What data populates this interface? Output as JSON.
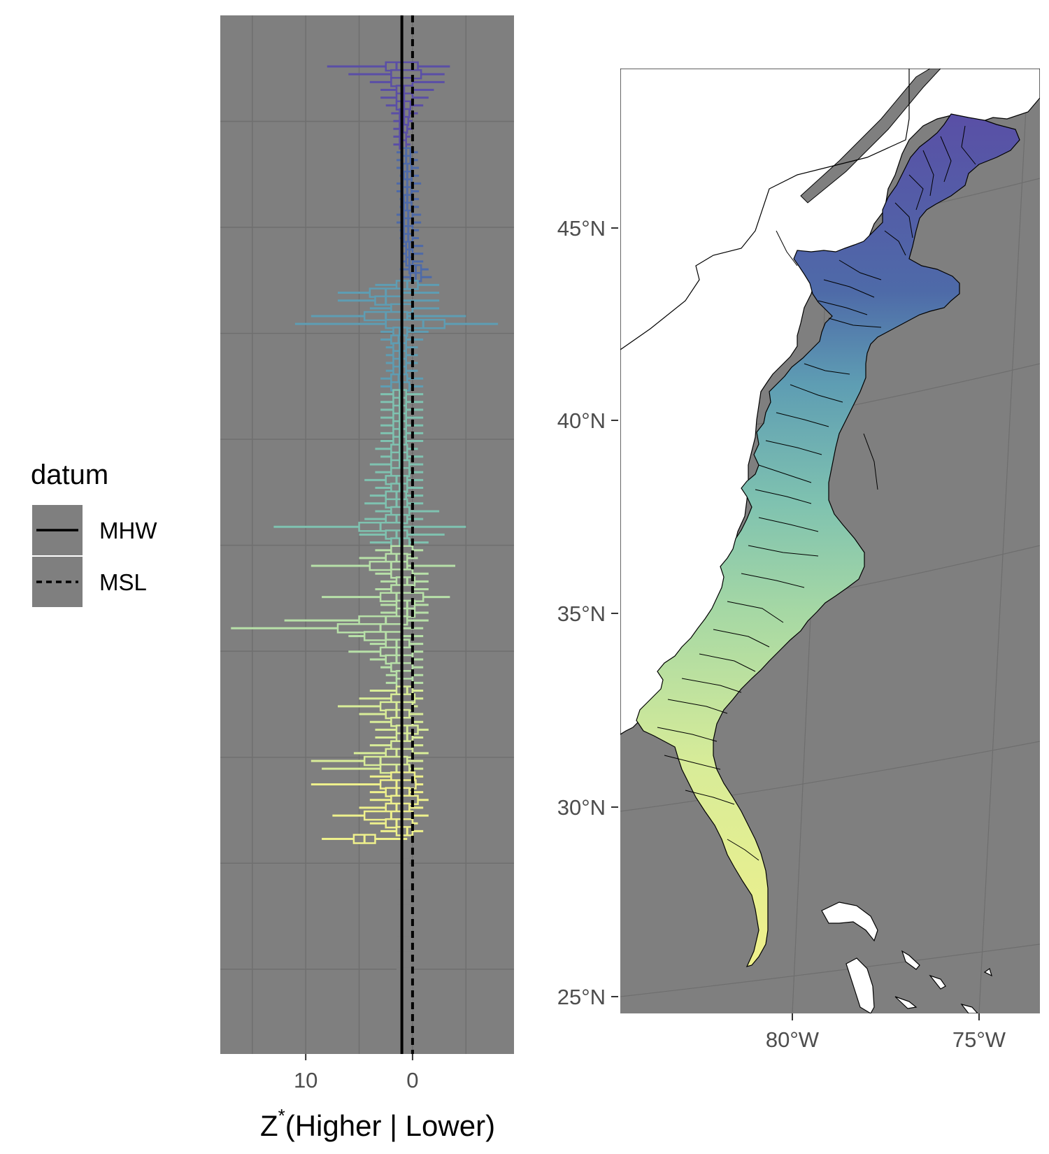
{
  "legend": {
    "title": "datum",
    "items": [
      {
        "label": "MHW",
        "linetype": "solid"
      },
      {
        "label": "MSL",
        "linetype": "dashed"
      }
    ]
  },
  "colors": {
    "panel_bg": "#7f7f7f",
    "grid": "#6f6f6f",
    "mhw_line": "#000000",
    "palette_north_to_south": [
      "#5a4ea6",
      "#4e6aa8",
      "#5e9db3",
      "#7fc2b0",
      "#b7e0a8",
      "#d8ec98",
      "#eef08c"
    ],
    "land": "#ffffff",
    "ocean": "#7f7f7f"
  },
  "chart_data": [
    {
      "type": "boxplot",
      "orientation": "horizontal",
      "xlabel": "Z* (Higher | Lower)",
      "xlabel_main": "Z",
      "xlabel_sup": "*",
      "xlabel_rest": "(Higher | Lower)",
      "x_reversed": true,
      "xlim": [
        18,
        -9.5
      ],
      "xticks": [
        10,
        0
      ],
      "xtick_labels": [
        "10",
        "0"
      ],
      "grid": true,
      "reference_lines": [
        {
          "datum": "MHW",
          "x": 1.0,
          "linetype": "solid"
        },
        {
          "datum": "MSL",
          "x": 0.0,
          "linetype": "dashed"
        }
      ],
      "series": [
        {
          "values": [
            [
              8.0,
              2.5,
              1.5,
              -0.5,
              -3.5
            ],
            [
              6.0,
              2.0,
              1.0,
              -0.8,
              -3.0
            ],
            [
              4.0,
              2.0,
              1.0,
              0.0,
              -3.0
            ],
            [
              3.0,
              1.5,
              0.8,
              0.0,
              -2.0
            ],
            [
              3.0,
              1.5,
              0.8,
              0.0,
              -1.5
            ],
            [
              2.5,
              1.5,
              0.8,
              0.2,
              -1.0
            ],
            [
              2.0,
              1.2,
              0.8,
              0.3,
              -0.5
            ],
            [
              1.8,
              1.2,
              0.8,
              0.4,
              0.0
            ],
            [
              1.8,
              1.2,
              0.9,
              0.5,
              0.0
            ],
            [
              1.8,
              1.2,
              1.0,
              0.6,
              0.2
            ],
            [
              1.8,
              1.2,
              1.0,
              0.6,
              0.2
            ]
          ]
        },
        {
          "values": [
            [
              1.5,
              1.0,
              0.6,
              0.2,
              -0.5
            ],
            [
              1.5,
              1.0,
              0.6,
              0.2,
              -0.5
            ],
            [
              1.5,
              0.9,
              0.5,
              0.1,
              -0.6
            ],
            [
              1.2,
              0.8,
              0.5,
              0.1,
              -0.6
            ],
            [
              1.5,
              0.9,
              0.5,
              0.1,
              -0.8
            ],
            [
              1.5,
              0.9,
              0.5,
              0.1,
              -0.6
            ],
            [
              1.2,
              0.8,
              0.5,
              0.1,
              -0.6
            ],
            [
              1.2,
              0.8,
              0.5,
              0.1,
              -0.6
            ],
            [
              1.5,
              0.8,
              0.4,
              0.0,
              -0.8
            ],
            [
              1.5,
              0.8,
              0.4,
              0.0,
              -0.8
            ],
            [
              1.2,
              0.8,
              0.4,
              0.0,
              -0.6
            ],
            [
              1.2,
              0.8,
              0.4,
              0.0,
              -0.6
            ],
            [
              1.0,
              0.6,
              0.3,
              0.0,
              -1.0
            ],
            [
              1.0,
              0.6,
              0.3,
              0.0,
              -1.0
            ],
            [
              1.0,
              0.6,
              0.3,
              0.0,
              -1.0
            ],
            [
              1.2,
              0.3,
              -0.3,
              -0.8,
              -1.5
            ],
            [
              1.0,
              0.2,
              -0.3,
              -0.8,
              -1.8
            ]
          ]
        },
        {
          "values": [
            [
              3.5,
              1.5,
              0.5,
              -0.5,
              -2.5
            ],
            [
              7.0,
              4.0,
              2.5,
              1.0,
              -2.5
            ],
            [
              7.0,
              3.5,
              2.5,
              1.0,
              -2.5
            ],
            [
              4.0,
              2.0,
              1.0,
              0.0,
              -2.5
            ],
            [
              9.5,
              4.5,
              2.5,
              0.5,
              -5.0
            ],
            [
              11.0,
              2.5,
              -1.0,
              -3.0,
              -8.0
            ],
            [
              3.0,
              1.8,
              1.2,
              0.5,
              -1.5
            ],
            [
              3.0,
              2.0,
              1.3,
              0.6,
              -1.0
            ],
            [
              2.5,
              1.8,
              1.2,
              0.6,
              -0.5
            ],
            [
              2.5,
              1.8,
              1.2,
              0.6,
              -0.5
            ],
            [
              2.5,
              1.8,
              1.2,
              0.6,
              -0.5
            ],
            [
              2.5,
              1.8,
              1.2,
              0.6,
              -0.5
            ],
            [
              3.0,
              2.0,
              1.3,
              0.5,
              -1.0
            ],
            [
              3.0,
              2.0,
              1.2,
              0.3,
              -1.0
            ]
          ]
        },
        {
          "values": [
            [
              3.0,
              1.8,
              1.2,
              0.6,
              -1.0
            ],
            [
              3.0,
              1.8,
              1.2,
              0.6,
              -1.0
            ],
            [
              3.0,
              1.8,
              1.2,
              0.6,
              -1.0
            ],
            [
              3.0,
              1.8,
              1.2,
              0.6,
              -1.0
            ],
            [
              3.0,
              1.8,
              1.2,
              0.6,
              -1.0
            ],
            [
              3.0,
              1.8,
              1.2,
              0.6,
              -1.0
            ],
            [
              3.0,
              1.8,
              1.2,
              0.6,
              -1.0
            ],
            [
              3.5,
              2.0,
              1.2,
              0.5,
              -0.5
            ],
            [
              3.0,
              2.0,
              1.2,
              0.5,
              -1.0
            ],
            [
              4.0,
              2.0,
              1.2,
              0.3,
              -1.0
            ],
            [
              3.5,
              2.0,
              1.0,
              0.3,
              -1.0
            ],
            [
              4.5,
              2.5,
              1.5,
              0.5,
              -1.0
            ],
            [
              3.5,
              2.0,
              1.2,
              0.5,
              -1.0
            ],
            [
              4.0,
              2.5,
              1.5,
              0.6,
              -1.0
            ],
            [
              4.5,
              2.5,
              1.5,
              0.5,
              -1.0
            ],
            [
              3.5,
              2.0,
              1.0,
              0.3,
              -2.5
            ],
            [
              4.5,
              2.5,
              1.5,
              0.5,
              -1.0
            ],
            [
              13.0,
              5.0,
              3.0,
              1.0,
              -5.0
            ],
            [
              5.0,
              2.5,
              1.5,
              0.5,
              -3.0
            ],
            [
              4.0,
              2.0,
              1.2,
              0.3,
              -1.5
            ]
          ]
        },
        {
          "values": [
            [
              3.5,
              2.0,
              1.0,
              0.0,
              -1.0
            ],
            [
              5.0,
              2.5,
              1.5,
              0.5,
              -0.5
            ],
            [
              9.5,
              4.0,
              2.0,
              0.5,
              -4.0
            ],
            [
              3.5,
              2.0,
              1.0,
              0.0,
              -1.5
            ],
            [
              3.0,
              1.5,
              0.5,
              -0.2,
              -1.5
            ],
            [
              3.5,
              2.0,
              1.0,
              0.0,
              -1.5
            ],
            [
              8.5,
              3.0,
              1.5,
              -1.0,
              -3.5
            ],
            [
              3.0,
              1.5,
              0.5,
              -0.2,
              -1.5
            ],
            [
              3.0,
              1.5,
              0.5,
              -0.2,
              -1.5
            ],
            [
              12.0,
              5.0,
              2.5,
              0.5,
              -1.5
            ],
            [
              17.0,
              7.0,
              3.0,
              1.0,
              -1.0
            ],
            [
              6.0,
              4.5,
              2.5,
              1.0,
              -1.0
            ],
            [
              4.0,
              2.5,
              1.5,
              0.3,
              -1.0
            ],
            [
              6.0,
              3.0,
              1.5,
              0.0,
              -1.0
            ],
            [
              4.0,
              2.5,
              1.5,
              0.0,
              -1.0
            ],
            [
              3.0,
              2.0,
              1.0,
              0.0,
              -1.0
            ],
            [
              2.5,
              1.5,
              1.0,
              0.0,
              -1.0
            ],
            [
              2.5,
              1.5,
              1.0,
              0.0,
              -1.0
            ]
          ]
        },
        {
          "values": [
            [
              4.0,
              1.5,
              0.5,
              0.0,
              -1.0
            ],
            [
              5.0,
              2.0,
              1.0,
              -0.2,
              -1.0
            ],
            [
              7.0,
              3.0,
              1.5,
              0.0,
              -0.5
            ],
            [
              5.0,
              2.5,
              1.5,
              0.3,
              -1.0
            ],
            [
              4.0,
              2.0,
              1.0,
              0.0,
              -1.0
            ],
            [
              3.5,
              1.5,
              0.5,
              -0.5,
              -1.5
            ],
            [
              3.5,
              1.5,
              0.5,
              0.0,
              -1.0
            ],
            [
              4.0,
              2.0,
              1.0,
              0.0,
              -1.0
            ],
            [
              5.5,
              2.5,
              1.5,
              0.0,
              -1.5
            ],
            [
              9.5,
              4.5,
              3.0,
              0.5,
              -1.0
            ],
            [
              8.5,
              3.0,
              1.5,
              0.3,
              -1.0
            ]
          ]
        },
        {
          "values": [
            [
              4.0,
              2.0,
              1.0,
              -0.2,
              -1.0
            ],
            [
              9.5,
              3.0,
              1.5,
              -0.3,
              -1.0
            ],
            [
              4.0,
              2.5,
              1.5,
              0.3,
              -1.0
            ],
            [
              4.0,
              2.0,
              1.0,
              -0.5,
              -1.5
            ],
            [
              5.0,
              2.5,
              1.5,
              0.3,
              -1.0
            ],
            [
              7.5,
              4.5,
              2.0,
              0.0,
              -1.5
            ],
            [
              4.0,
              2.5,
              1.5,
              0.0,
              -0.5
            ],
            [
              3.0,
              1.5,
              0.5,
              0.0,
              -1.0
            ],
            [
              8.5,
              5.5,
              4.5,
              3.5,
              0.5
            ]
          ]
        },
        {
          "values": [
            [
              1.5,
              1.0,
              0.7,
              0.3,
              0.0
            ],
            [
              1.5,
              1.0,
              0.7,
              0.3,
              0.0
            ],
            [
              1.5,
              1.0,
              0.7,
              0.3,
              0.0
            ],
            [
              3.0,
              1.5,
              0.8,
              0.0,
              -0.5
            ],
            [
              3.0,
              1.5,
              0.8,
              0.0,
              -0.5
            ],
            [
              3.0,
              1.5,
              0.5,
              -0.3,
              -0.8
            ],
            [
              3.0,
              1.5,
              0.5,
              -0.3,
              -0.8
            ],
            [
              2.5,
              1.5,
              0.5,
              0.0,
              -0.5
            ],
            [
              2.5,
              1.5,
              0.5,
              0.0,
              -0.5
            ],
            [
              2.0,
              1.0,
              0.5,
              0.0,
              -0.5
            ],
            [
              2.0,
              1.0,
              0.5,
              0.0,
              -0.5
            ],
            [
              2.5,
              1.5,
              0.8,
              0.0,
              -0.5
            ],
            [
              3.0,
              1.5,
              0.8,
              0.0,
              -0.5
            ],
            [
              3.0,
              1.5,
              0.5,
              -0.2,
              -0.8
            ],
            [
              3.0,
              1.5,
              0.5,
              -0.2,
              -0.8
            ],
            [
              3.0,
              1.5,
              0.5,
              0.0,
              -0.5
            ],
            [
              3.0,
              1.5,
              0.5,
              0.0,
              -0.5
            ],
            [
              3.0,
              1.5,
              0.5,
              0.0,
              -0.5
            ],
            [
              2.5,
              1.5,
              0.5,
              0.0,
              -0.5
            ],
            [
              2.5,
              1.5,
              0.5,
              0.0,
              -0.5
            ],
            [
              3.0,
              1.5,
              0.5,
              0.0,
              -0.5
            ],
            [
              3.0,
              1.5,
              0.5,
              0.0,
              -0.5
            ]
          ]
        }
      ]
    },
    {
      "type": "map",
      "yticks": [
        45,
        40,
        35,
        30,
        25
      ],
      "ytick_labels": [
        "45°N",
        "40°N",
        "35°N",
        "30°N",
        "25°N"
      ],
      "xticks": [
        -80,
        -75
      ],
      "xtick_labels": [
        "80°W",
        "75°W"
      ],
      "fill_gradient": "north_to_south"
    }
  ]
}
